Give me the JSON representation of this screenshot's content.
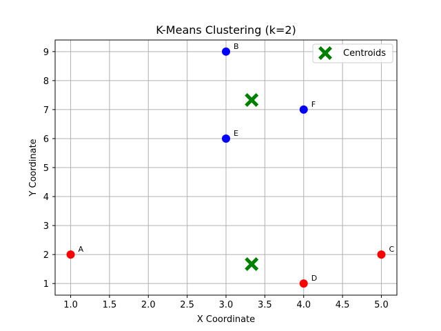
{
  "chart_data": {
    "type": "scatter",
    "title": "K-Means Clustering (k=2)",
    "xlabel": "X Coordinate",
    "ylabel": "Y Coordinate",
    "xlim": [
      0.8,
      5.2
    ],
    "ylim": [
      0.6,
      9.4
    ],
    "xticks": [
      "1.0",
      "1.5",
      "2.0",
      "2.5",
      "3.0",
      "3.5",
      "4.0",
      "4.5",
      "5.0"
    ],
    "yticks": [
      "1",
      "2",
      "3",
      "4",
      "5",
      "6",
      "7",
      "8",
      "9"
    ],
    "grid": true,
    "legend_position": "top-right",
    "points": [
      {
        "label": "A",
        "x": 1,
        "y": 2,
        "cluster": 0
      },
      {
        "label": "B",
        "x": 3,
        "y": 9,
        "cluster": 1
      },
      {
        "label": "C",
        "x": 5,
        "y": 2,
        "cluster": 0
      },
      {
        "label": "D",
        "x": 4,
        "y": 1,
        "cluster": 0
      },
      {
        "label": "E",
        "x": 3,
        "y": 6,
        "cluster": 1
      },
      {
        "label": "F",
        "x": 4,
        "y": 7,
        "cluster": 1
      }
    ],
    "cluster_colors": [
      "#ff0000",
      "#0000ff"
    ],
    "centroids": {
      "name": "Centroids",
      "color": "#008000",
      "marker": "X",
      "points": [
        {
          "x": 3.33,
          "y": 1.67
        },
        {
          "x": 3.33,
          "y": 7.33
        }
      ]
    }
  }
}
